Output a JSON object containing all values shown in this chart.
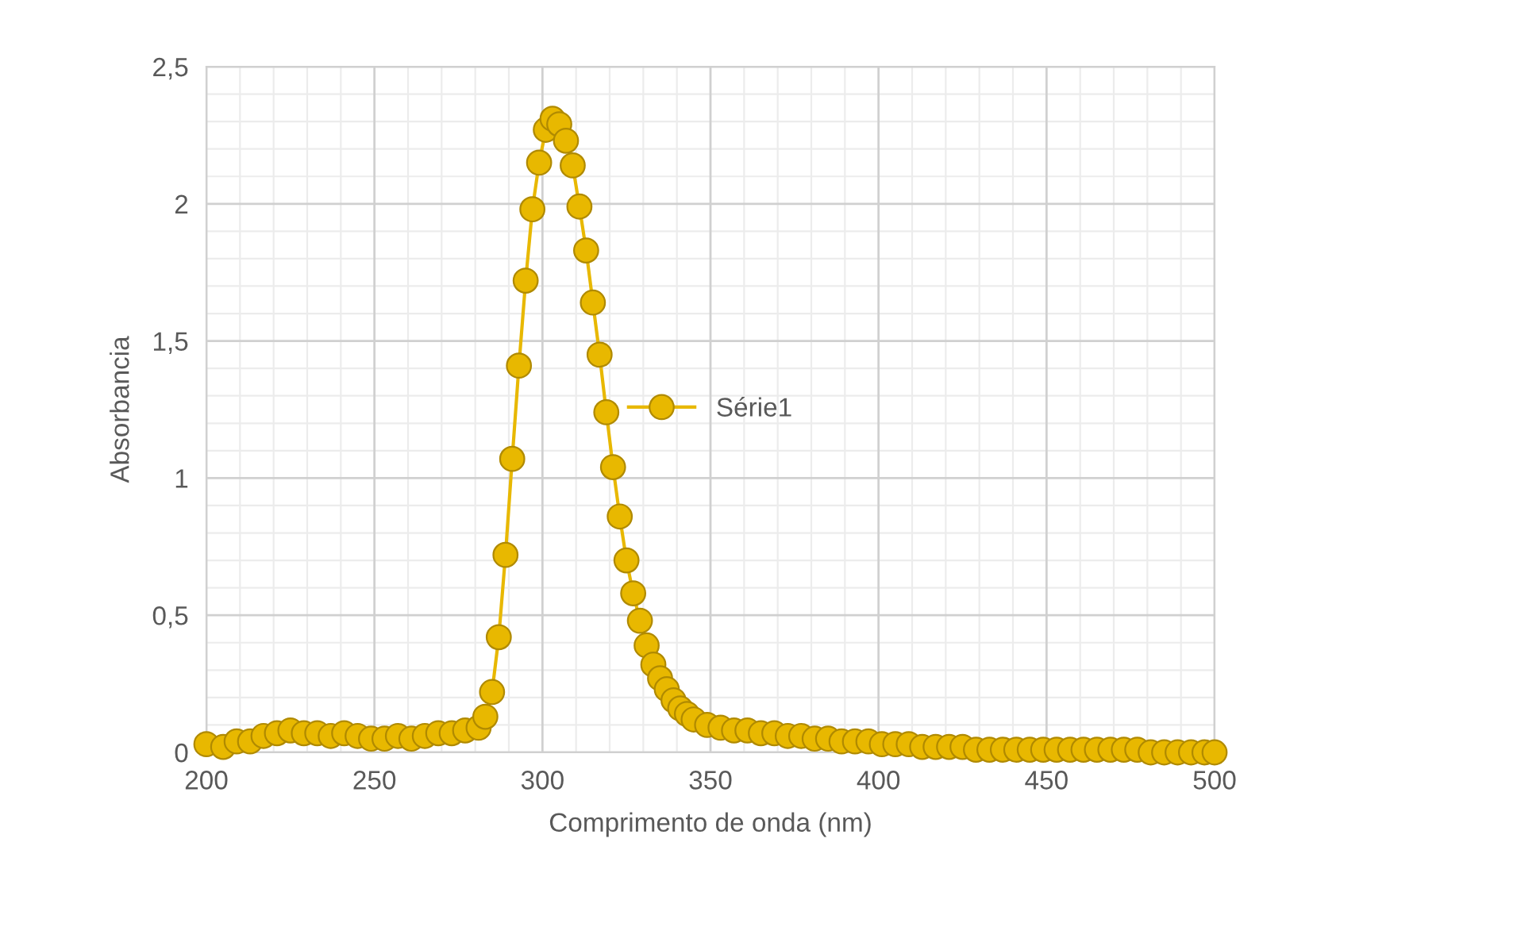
{
  "chart_data": {
    "type": "line",
    "xlabel": "Comprimento de onda (nm)",
    "ylabel": "Absorbancia",
    "xlim": [
      200,
      500
    ],
    "ylim": [
      0,
      2.5
    ],
    "xticks": [
      200,
      250,
      300,
      350,
      400,
      450,
      500
    ],
    "yticks": [
      0,
      {
        "value": 0.5,
        "label": "0,5"
      },
      1,
      {
        "value": 1.5,
        "label": "1,5"
      },
      2,
      {
        "value": 2.5,
        "label": "2,5"
      }
    ],
    "grid": true,
    "legend": "center",
    "marker": "circle",
    "line_style": "solid",
    "series": [
      {
        "name": "Série1",
        "color": "#e8b800",
        "x": [
          200,
          205,
          209,
          213,
          217,
          221,
          225,
          229,
          233,
          237,
          241,
          245,
          249,
          253,
          257,
          261,
          265,
          269,
          273,
          277,
          281,
          283,
          285,
          287,
          289,
          291,
          293,
          295,
          297,
          299,
          301,
          303,
          305,
          307,
          309,
          311,
          313,
          315,
          317,
          319,
          321,
          323,
          325,
          327,
          329,
          331,
          333,
          335,
          337,
          339,
          341,
          343,
          345,
          349,
          353,
          357,
          361,
          365,
          369,
          373,
          377,
          381,
          385,
          389,
          393,
          397,
          401,
          405,
          409,
          413,
          417,
          421,
          425,
          429,
          433,
          437,
          441,
          445,
          449,
          453,
          457,
          461,
          465,
          469,
          473,
          477,
          481,
          485,
          489,
          493,
          497,
          500
        ],
        "values": [
          0.03,
          0.02,
          0.04,
          0.04,
          0.06,
          0.07,
          0.08,
          0.07,
          0.07,
          0.06,
          0.07,
          0.06,
          0.05,
          0.05,
          0.06,
          0.05,
          0.06,
          0.07,
          0.07,
          0.08,
          0.09,
          0.13,
          0.22,
          0.42,
          0.72,
          1.07,
          1.41,
          1.72,
          1.98,
          2.15,
          2.27,
          2.31,
          2.29,
          2.23,
          2.14,
          1.99,
          1.83,
          1.64,
          1.45,
          1.24,
          1.04,
          0.86,
          0.7,
          0.58,
          0.48,
          0.39,
          0.32,
          0.27,
          0.23,
          0.19,
          0.16,
          0.14,
          0.12,
          0.1,
          0.09,
          0.08,
          0.08,
          0.07,
          0.07,
          0.06,
          0.06,
          0.05,
          0.05,
          0.04,
          0.04,
          0.04,
          0.03,
          0.03,
          0.03,
          0.02,
          0.02,
          0.02,
          0.02,
          0.01,
          0.01,
          0.01,
          0.01,
          0.01,
          0.01,
          0.01,
          0.01,
          0.01,
          0.01,
          0.01,
          0.01,
          0.01,
          0.0,
          0.0,
          0.0,
          0.0,
          0.0,
          0.0
        ]
      }
    ]
  }
}
